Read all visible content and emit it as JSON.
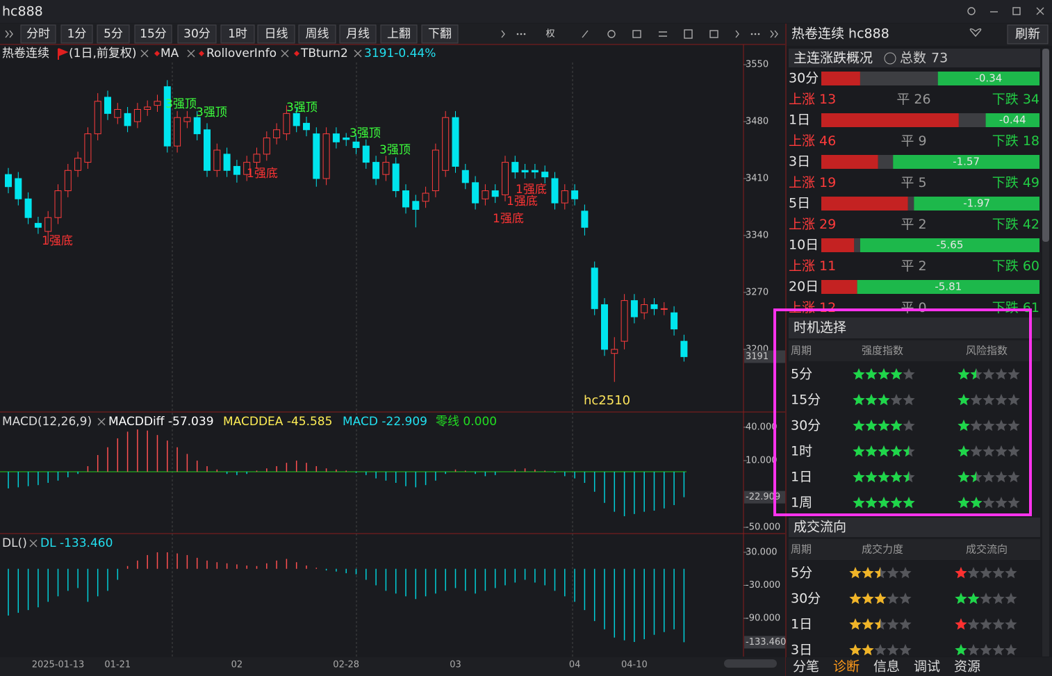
{
  "window": {
    "title": "hc888"
  },
  "toolbar": [
    "分时",
    "1分",
    "5分",
    "15分",
    "30分",
    "1时",
    "日线",
    "周线",
    "月线",
    "上翻",
    "下翻"
  ],
  "rights_button": "权",
  "chart_data": [
    {
      "type": "candlestick",
      "legend": [
        "热卷连续",
        "(1日,前复权)",
        "MA",
        "RolloverInfo",
        "TBturn2",
        "3191-0.44%"
      ],
      "annotations": [
        "1强底",
        "1强底",
        "1强底",
        "1强底",
        "1强底",
        "3强顶",
        "3强顶",
        "3强顶",
        "3强顶",
        "3强顶"
      ],
      "contract": "hc2510",
      "categories": [
        null,
        null,
        null,
        null,
        null,
        "2025-01-13",
        null,
        null,
        null,
        null,
        null,
        "01-21",
        null,
        null,
        null,
        null,
        null,
        null,
        null,
        null,
        null,
        null,
        null,
        "02",
        null,
        null,
        null,
        null,
        null,
        null,
        null,
        null,
        null,
        null,
        "02-28",
        null,
        null,
        null,
        null,
        null,
        null,
        null,
        null,
        null,
        null,
        "03",
        null,
        null,
        null,
        null,
        null,
        null,
        null,
        null,
        null,
        null,
        null,
        "04",
        null,
        null,
        null,
        null,
        null,
        "04-10",
        null,
        null,
        null,
        null,
        null
      ],
      "open": [
        3415,
        3410,
        3385,
        3355,
        3345,
        3362,
        3395,
        3420,
        3430,
        3465,
        3510,
        3485,
        3490,
        3480,
        3495,
        3500,
        3523,
        3450,
        3480,
        3485,
        3470,
        3420,
        3440,
        3425,
        3415,
        3430,
        3440,
        3460,
        3465,
        3490,
        3478,
        3465,
        3410,
        3465,
        3460,
        3455,
        3450,
        3430,
        3415,
        3428,
        3395,
        3382,
        3382,
        3395,
        3420,
        3485,
        3420,
        3405,
        3385,
        3395,
        3390,
        3430,
        3420,
        3420,
        3418,
        3410,
        3380,
        3395,
        3370,
        3300,
        3255,
        3195,
        3210,
        3260,
        3245,
        3255,
        3250,
        3245,
        3210
      ],
      "close": [
        3400,
        3385,
        3362,
        3350,
        3362,
        3395,
        3420,
        3435,
        3465,
        3505,
        3490,
        3495,
        3475,
        3495,
        3498,
        3505,
        3450,
        3485,
        3485,
        3465,
        3420,
        3445,
        3420,
        3415,
        3430,
        3440,
        3460,
        3470,
        3490,
        3475,
        3470,
        3410,
        3465,
        3455,
        3458,
        3448,
        3430,
        3410,
        3430,
        3395,
        3375,
        3372,
        3392,
        3445,
        3485,
        3425,
        3405,
        3380,
        3395,
        3388,
        3430,
        3418,
        3418,
        3418,
        3412,
        3380,
        3395,
        3385,
        3350,
        3250,
        3200,
        3200,
        3260,
        3240,
        3255,
        3250,
        3250,
        3225,
        3191
      ],
      "high": [
        3423,
        3418,
        3393,
        3363,
        3370,
        3403,
        3428,
        3443,
        3473,
        3515,
        3518,
        3503,
        3498,
        3503,
        3506,
        3513,
        3531,
        3493,
        3493,
        3493,
        3478,
        3453,
        3448,
        3433,
        3438,
        3448,
        3468,
        3478,
        3500,
        3498,
        3486,
        3473,
        3473,
        3473,
        3466,
        3463,
        3458,
        3438,
        3438,
        3436,
        3403,
        3390,
        3400,
        3453,
        3493,
        3493,
        3428,
        3413,
        3403,
        3403,
        3438,
        3438,
        3428,
        3428,
        3426,
        3418,
        3403,
        3403,
        3378,
        3308,
        3263,
        3215,
        3268,
        3268,
        3263,
        3263,
        3258,
        3253,
        3218
      ],
      "low": [
        3392,
        3377,
        3354,
        3342,
        3330,
        3354,
        3387,
        3412,
        3422,
        3457,
        3482,
        3477,
        3467,
        3472,
        3487,
        3492,
        3442,
        3442,
        3472,
        3457,
        3412,
        3412,
        3412,
        3405,
        3407,
        3422,
        3432,
        3452,
        3457,
        3467,
        3462,
        3400,
        3402,
        3447,
        3450,
        3440,
        3422,
        3402,
        3407,
        3387,
        3367,
        3350,
        3374,
        3387,
        3412,
        3417,
        3397,
        3372,
        3377,
        3380,
        3382,
        3410,
        3410,
        3410,
        3404,
        3372,
        3372,
        3377,
        3340,
        3242,
        3192,
        3160,
        3200,
        3232,
        3237,
        3242,
        3242,
        3217,
        3185
      ],
      "up_color": "#ff3d3d",
      "down_color": "#00e5ee",
      "ylim": [
        3123,
        3574
      ],
      "yticks": [
        3200,
        3270,
        3340,
        3410,
        3480,
        3550
      ]
    },
    {
      "type": "bar",
      "legend": [
        "MACD(12,26,9)",
        "MACDDiff -57.039",
        "MACDDEA -45.585",
        "MACD -22.909",
        "零线 0.000"
      ],
      "values": [
        -15,
        -14,
        -13,
        -12,
        -10,
        -8,
        -5,
        -2,
        5,
        15,
        22,
        30,
        36,
        38,
        37,
        33,
        28,
        22,
        16,
        10,
        5,
        2,
        -2,
        -3,
        -2,
        1,
        3,
        5,
        8,
        10,
        8,
        5,
        3,
        2,
        1,
        -1,
        -3,
        -6,
        -8,
        -10,
        -13,
        -14,
        -12,
        -8,
        -2,
        2,
        1,
        -2,
        -4,
        -3,
        0,
        2,
        3,
        2,
        1,
        -1,
        -4,
        -6,
        -10,
        -18,
        -28,
        -36,
        -40,
        -38,
        -36,
        -35,
        -33,
        -30,
        -22.909
      ],
      "zero_line": 0,
      "up_color": "#ff5050",
      "down_color": "#00d0d8",
      "ylim": [
        -55.6,
        51.2
      ],
      "yticks": [
        {
          "value": 40,
          "label": "40.000"
        },
        {
          "value": 10,
          "label": "10.000"
        },
        {
          "value": -50,
          "label": "-50.000"
        }
      ]
    },
    {
      "type": "bar",
      "legend": [
        "DL()",
        "DL -133.460"
      ],
      "values": [
        -85,
        -80,
        -75,
        -70,
        -60,
        -50,
        -40,
        -35,
        -60,
        -50,
        -40,
        -20,
        5,
        15,
        25,
        30,
        30,
        28,
        25,
        20,
        15,
        12,
        10,
        8,
        6,
        5,
        10,
        15,
        18,
        12,
        6,
        2,
        -3,
        -5,
        -8,
        -10,
        -20,
        -30,
        -40,
        -45,
        -50,
        -55,
        -50,
        -45,
        -40,
        -35,
        -40,
        -45,
        -40,
        -35,
        -30,
        -25,
        -20,
        -25,
        -30,
        -40,
        -50,
        -60,
        -75,
        -95,
        -110,
        -125,
        -130,
        -133,
        -128,
        -120,
        -115,
        -110,
        -133.46
      ],
      "last_label": "-133.460",
      "up_color": "#ff5050",
      "down_color": "#00d0d8",
      "ylim": [
        -159.5,
        59
      ],
      "yticks": [
        {
          "value": 30,
          "label": "30.000"
        },
        {
          "value": -30,
          "label": "-30.000"
        },
        {
          "value": -90,
          "label": "-90.000"
        }
      ]
    }
  ],
  "side": {
    "title": "热卷连续 hc888",
    "refresh": "刷新",
    "overview": {
      "title": "主连涨跌概况",
      "total_label": "总数",
      "total": 73,
      "labels": {
        "up": "上涨",
        "flat": "平",
        "down": "下跌"
      },
      "rows": [
        {
          "period": "30分",
          "change": -0.34,
          "up": 13,
          "flat": 26,
          "down": 34
        },
        {
          "period": "1日",
          "change": -0.44,
          "up": 46,
          "flat": 9,
          "down": 18
        },
        {
          "period": "3日",
          "change": -1.57,
          "up": 19,
          "flat": 5,
          "down": 49
        },
        {
          "period": "5日",
          "change": -1.97,
          "up": 29,
          "flat": 2,
          "down": 42
        },
        {
          "period": "10日",
          "change": -5.65,
          "up": 11,
          "flat": 2,
          "down": 60
        },
        {
          "period": "20日",
          "change": -5.81,
          "up": 12,
          "flat": 0,
          "down": 61
        }
      ]
    },
    "timing": {
      "title": "时机选择",
      "columns": [
        "周期",
        "强度指数",
        "风险指数"
      ],
      "color": "#1fd64a",
      "rows": [
        {
          "period": "5分",
          "strength": 4,
          "risk": 1.5
        },
        {
          "period": "15分",
          "strength": 3,
          "risk": 1
        },
        {
          "period": "30分",
          "strength": 4,
          "risk": 1
        },
        {
          "period": "1时",
          "strength": 4.5,
          "risk": 1
        },
        {
          "period": "1日",
          "strength": 4.5,
          "risk": 1.5
        },
        {
          "period": "1周",
          "strength": 5,
          "risk": 2
        }
      ]
    },
    "flow": {
      "title": "成交流向",
      "columns": [
        "周期",
        "成交力度",
        "成交流向"
      ],
      "force_color": "#f0b428",
      "rows": [
        {
          "period": "5分",
          "force": 2.5,
          "direction": 1,
          "direction_color": "#ff3030"
        },
        {
          "period": "30分",
          "force": 3,
          "direction": 2,
          "direction_color": "#1fd64a"
        },
        {
          "period": "1日",
          "force": 2.5,
          "direction": 1,
          "direction_color": "#ff3030"
        },
        {
          "period": "3日",
          "force": 2,
          "direction": 1,
          "direction_color": "#1fd64a"
        }
      ]
    },
    "tabs": [
      "分笔",
      "诊断",
      "信息",
      "调试",
      "资源"
    ],
    "active_tab": 1
  }
}
